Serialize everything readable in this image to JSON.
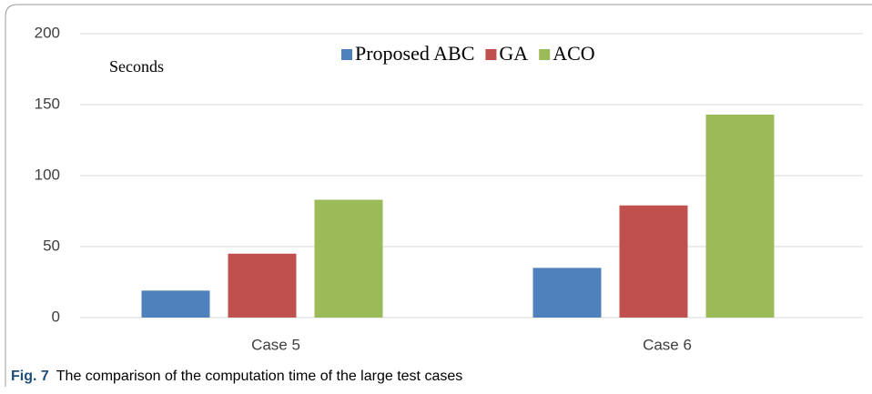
{
  "chart_data": {
    "type": "bar",
    "annotation": "Seconds",
    "categories": [
      "Case 5",
      "Case 6"
    ],
    "series": [
      {
        "name": "Proposed ABC",
        "color": "#4f81bd",
        "values": [
          19,
          35
        ]
      },
      {
        "name": "GA",
        "color": "#c0504d",
        "values": [
          45,
          79
        ]
      },
      {
        "name": "ACO",
        "color": "#9bbb59",
        "values": [
          83,
          143
        ]
      }
    ],
    "ylim": [
      0,
      200
    ],
    "yticks": [
      0,
      50,
      100,
      150,
      200
    ],
    "grid": true,
    "legend": "top"
  },
  "caption": {
    "label": "Fig. 7",
    "text": "The comparison of the computation time of the large test cases"
  }
}
